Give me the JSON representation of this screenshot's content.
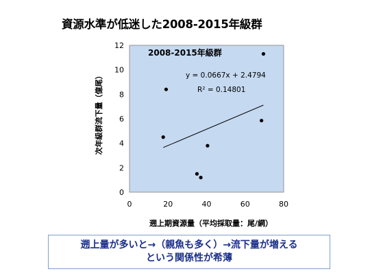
{
  "page_title": "資源水準が低迷した2008-2015年級群",
  "conclusion": {
    "line1": "遡上量が多いと→（親魚も多く）→流下量が増える",
    "line2": "という関係性が希薄"
  },
  "colors": {
    "plot_background": "#c5d9f1",
    "conclusion_text": "#1a2e8a",
    "conclusion_border": "#7f9fc9"
  },
  "chart_data": {
    "type": "scatter",
    "title": "2008-2015年級群",
    "xlabel": "遡上期資源量（平均採取量：尾/網）",
    "ylabel": "次年級群流下量（億尾）",
    "xlim": [
      0,
      80
    ],
    "ylim": [
      0,
      12
    ],
    "x_ticks": [
      0,
      20,
      40,
      60,
      80
    ],
    "y_ticks": [
      0,
      2,
      4,
      6,
      8,
      10,
      12
    ],
    "grid": false,
    "points": [
      {
        "x": 17.5,
        "y": 4.5
      },
      {
        "x": 19,
        "y": 8.4
      },
      {
        "x": 35,
        "y": 1.5
      },
      {
        "x": 37,
        "y": 1.2
      },
      {
        "x": 40.5,
        "y": 3.8
      },
      {
        "x": 68.5,
        "y": 5.85
      },
      {
        "x": 69.5,
        "y": 11.3
      }
    ],
    "trendline": {
      "slope": 0.0667,
      "intercept": 2.4794,
      "x_range": [
        17.5,
        69.5
      ],
      "equation_label": "y = 0.0667x + 2.4794",
      "r2_label": "R² = 0.14801"
    }
  }
}
